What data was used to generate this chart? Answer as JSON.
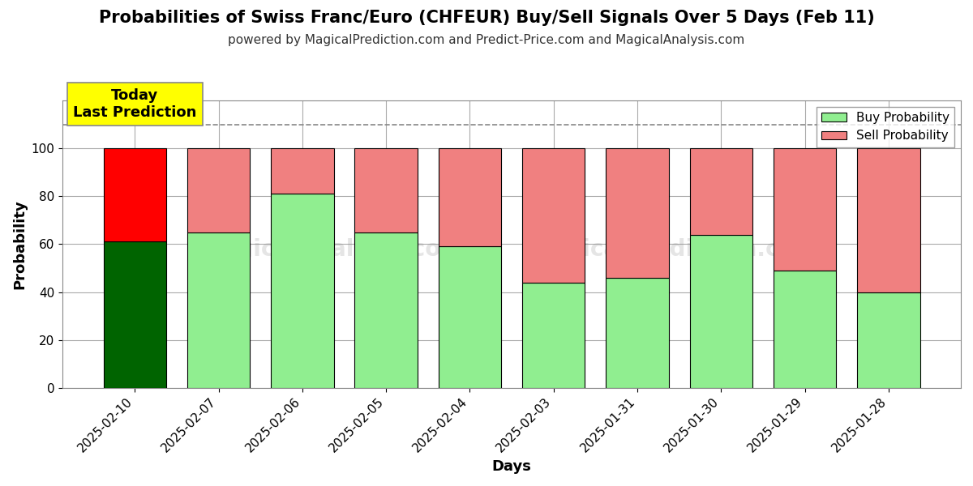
{
  "title": "Probabilities of Swiss Franc/Euro (CHFEUR) Buy/Sell Signals Over 5 Days (Feb 11)",
  "subtitle": "powered by MagicalPrediction.com and Predict-Price.com and MagicalAnalysis.com",
  "xlabel": "Days",
  "ylabel": "Probability",
  "legend_buy": "Buy Probability",
  "legend_sell": "Sell Probability",
  "dates": [
    "2025-02-10",
    "2025-02-07",
    "2025-02-06",
    "2025-02-05",
    "2025-02-04",
    "2025-02-03",
    "2025-01-31",
    "2025-01-30",
    "2025-01-29",
    "2025-01-28"
  ],
  "buy_values": [
    61,
    65,
    81,
    65,
    59,
    44,
    46,
    64,
    49,
    40
  ],
  "sell_values": [
    39,
    35,
    19,
    35,
    41,
    56,
    54,
    36,
    51,
    60
  ],
  "bar_colors_buy": [
    "#006400",
    "#90EE90",
    "#90EE90",
    "#90EE90",
    "#90EE90",
    "#90EE90",
    "#90EE90",
    "#90EE90",
    "#90EE90",
    "#90EE90"
  ],
  "bar_colors_sell": [
    "#FF0000",
    "#F08080",
    "#F08080",
    "#F08080",
    "#F08080",
    "#F08080",
    "#F08080",
    "#F08080",
    "#F08080",
    "#F08080"
  ],
  "today_label": "Today\nLast Prediction",
  "today_label_bg": "#FFFF00",
  "today_label_fontsize": 13,
  "dashed_line_y": 110,
  "ylim": [
    0,
    120
  ],
  "yticks": [
    0,
    20,
    40,
    60,
    80,
    100
  ],
  "grid_color": "#aaaaaa",
  "background_color": "#ffffff",
  "title_fontsize": 15,
  "subtitle_fontsize": 11,
  "axis_label_fontsize": 13,
  "tick_fontsize": 11,
  "legend_fontsize": 11,
  "bar_width": 0.75
}
